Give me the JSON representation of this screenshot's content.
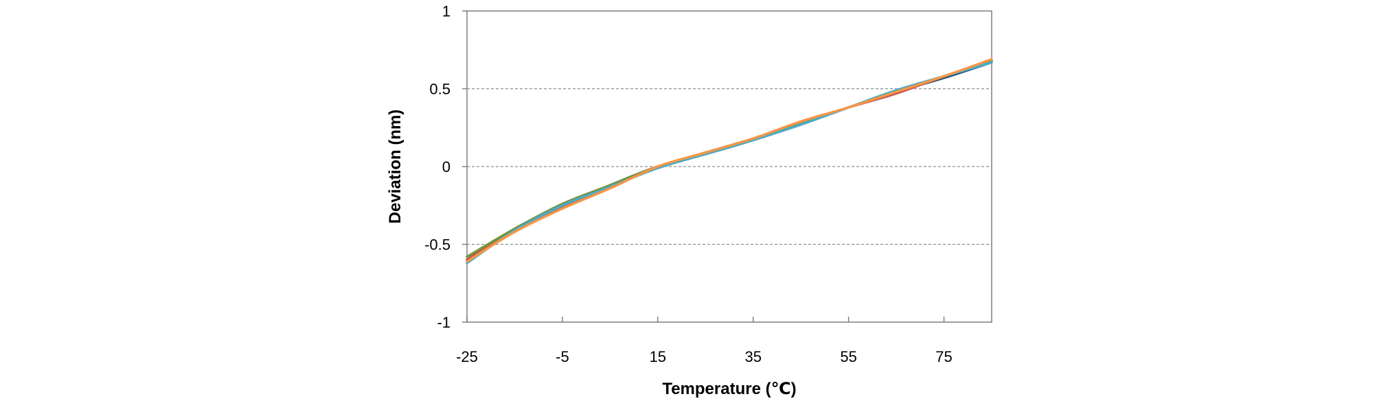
{
  "chart_data": {
    "type": "line",
    "title": "",
    "xlabel": "Temperature (℃)",
    "ylabel": "Deviation (nm)",
    "xlim": [
      -25,
      85
    ],
    "ylim": [
      -1,
      1
    ],
    "x_ticks": [
      -25,
      -5,
      15,
      35,
      55,
      75
    ],
    "y_ticks": [
      -1,
      -0.5,
      0,
      0.5,
      1
    ],
    "x_tick_labels": [
      "-25",
      "-5",
      "15",
      "35",
      "55",
      "75"
    ],
    "y_tick_labels": [
      "-1",
      "-0.5",
      "0",
      "0.5",
      "1"
    ],
    "grid": "horizontal dashed at y ticks",
    "legend": "none",
    "x": [
      -25,
      -15,
      -5,
      5,
      15,
      25,
      35,
      45,
      55,
      65,
      75,
      85
    ],
    "series": [
      {
        "color": "#1f4e79",
        "values": [
          -0.6,
          -0.4,
          -0.25,
          -0.12,
          0.0,
          0.08,
          0.17,
          0.27,
          0.38,
          0.48,
          0.57,
          0.67
        ]
      },
      {
        "color": "#c0504d",
        "values": [
          -0.6,
          -0.41,
          -0.26,
          -0.13,
          0.0,
          0.08,
          0.18,
          0.28,
          0.38,
          0.47,
          0.58,
          0.68
        ]
      },
      {
        "color": "#77933c",
        "values": [
          -0.58,
          -0.4,
          -0.24,
          -0.12,
          0.0,
          0.09,
          0.18,
          0.28,
          0.38,
          0.49,
          0.58,
          0.68
        ]
      },
      {
        "color": "#4bacc6",
        "values": [
          -0.62,
          -0.41,
          -0.25,
          -0.13,
          -0.01,
          0.08,
          0.17,
          0.27,
          0.38,
          0.49,
          0.58,
          0.67
        ]
      },
      {
        "color": "#f79646",
        "values": [
          -0.61,
          -0.42,
          -0.27,
          -0.14,
          0.0,
          0.09,
          0.18,
          0.29,
          0.38,
          0.48,
          0.58,
          0.69
        ]
      }
    ]
  }
}
